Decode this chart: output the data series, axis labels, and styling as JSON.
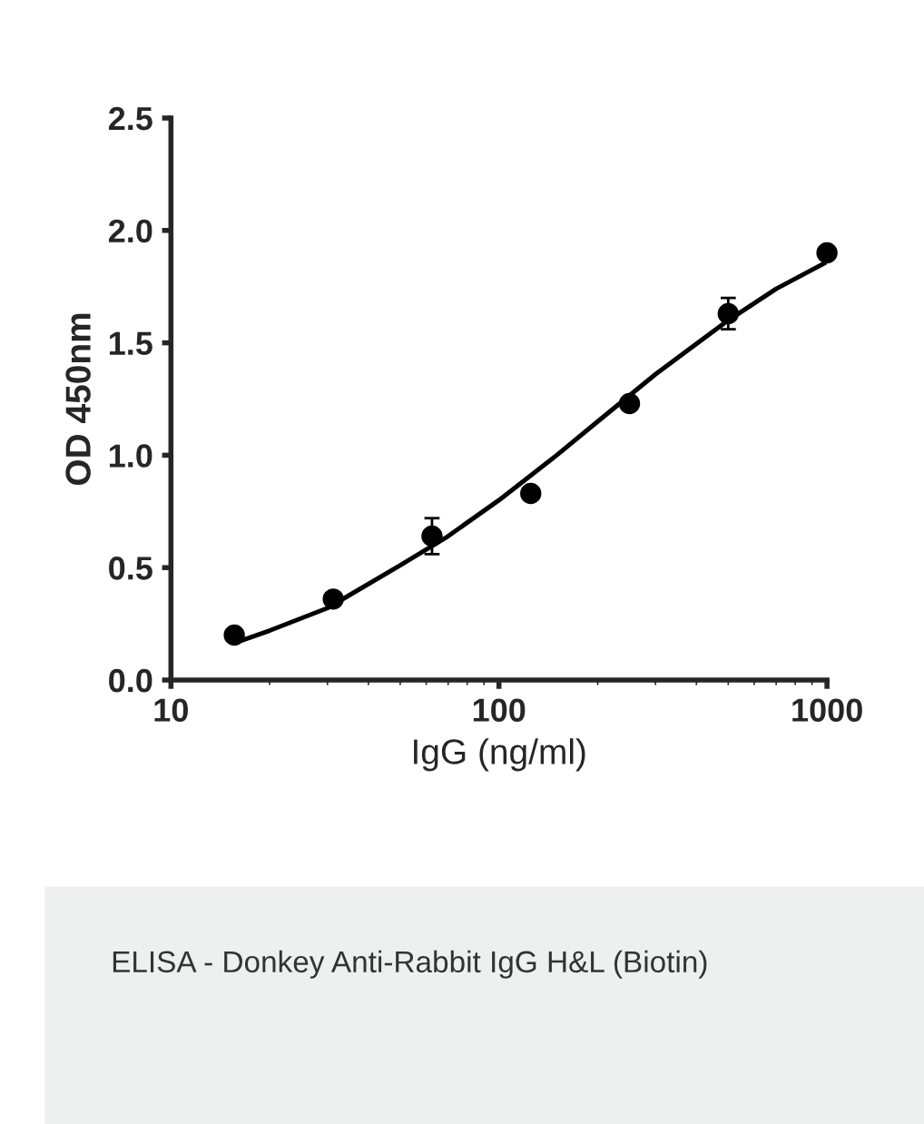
{
  "chart_data": {
    "type": "scatter",
    "xlabel": "IgG (ng/ml)",
    "ylabel": "OD 450nm",
    "annotations": [
      "ELISA - Donkey Anti-Rabbit IgG H&L (Biotin)"
    ],
    "log": "x",
    "xlim": [
      10,
      1000
    ],
    "xticks": [
      10,
      100,
      1000
    ],
    "ylim": [
      0,
      2.5
    ],
    "yticks": [
      {
        "value": 0,
        "label": "0.0"
      },
      0.5,
      {
        "value": 1,
        "label": "1.0"
      },
      1.5,
      {
        "value": 2,
        "label": "2.0"
      },
      2.5
    ],
    "grid": false,
    "legend": false,
    "series": [
      {
        "color": "#000000",
        "marker": "circle",
        "x": [
          15.6,
          31.25,
          62.5,
          125,
          250,
          500,
          1000
        ],
        "values": [
          0.2,
          0.36,
          0.64,
          0.83,
          1.23,
          1.63,
          1.9
        ],
        "errors": [
          null,
          null,
          0.08,
          null,
          null,
          0.07,
          null
        ]
      },
      {
        "type": "line",
        "color": "#000000",
        "line_style": "solid",
        "x": [
          16,
          20,
          30,
          50,
          70,
          100,
          150,
          200,
          300,
          500,
          700,
          1000
        ],
        "values": [
          0.17,
          0.22,
          0.32,
          0.51,
          0.64,
          0.8,
          1.0,
          1.15,
          1.36,
          1.6,
          1.74,
          1.86
        ]
      }
    ]
  }
}
